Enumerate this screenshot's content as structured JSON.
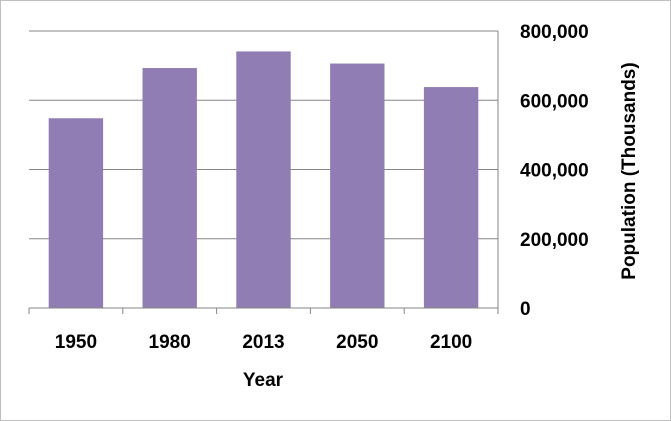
{
  "chart_data": {
    "type": "bar",
    "categories": [
      "1950",
      "1980",
      "2013",
      "2050",
      "2100"
    ],
    "values": [
      548000,
      693000,
      741000,
      706000,
      638000
    ],
    "title": "",
    "xlabel": "Year",
    "ylabel": "Population (Thousands)",
    "ylim": [
      0,
      800000
    ],
    "yticks": [
      "0",
      "200,000",
      "400,000",
      "600,000",
      "800,000"
    ],
    "yaxis_side": "right",
    "grid": true,
    "legend": "none",
    "bar_color": "#907db3"
  }
}
